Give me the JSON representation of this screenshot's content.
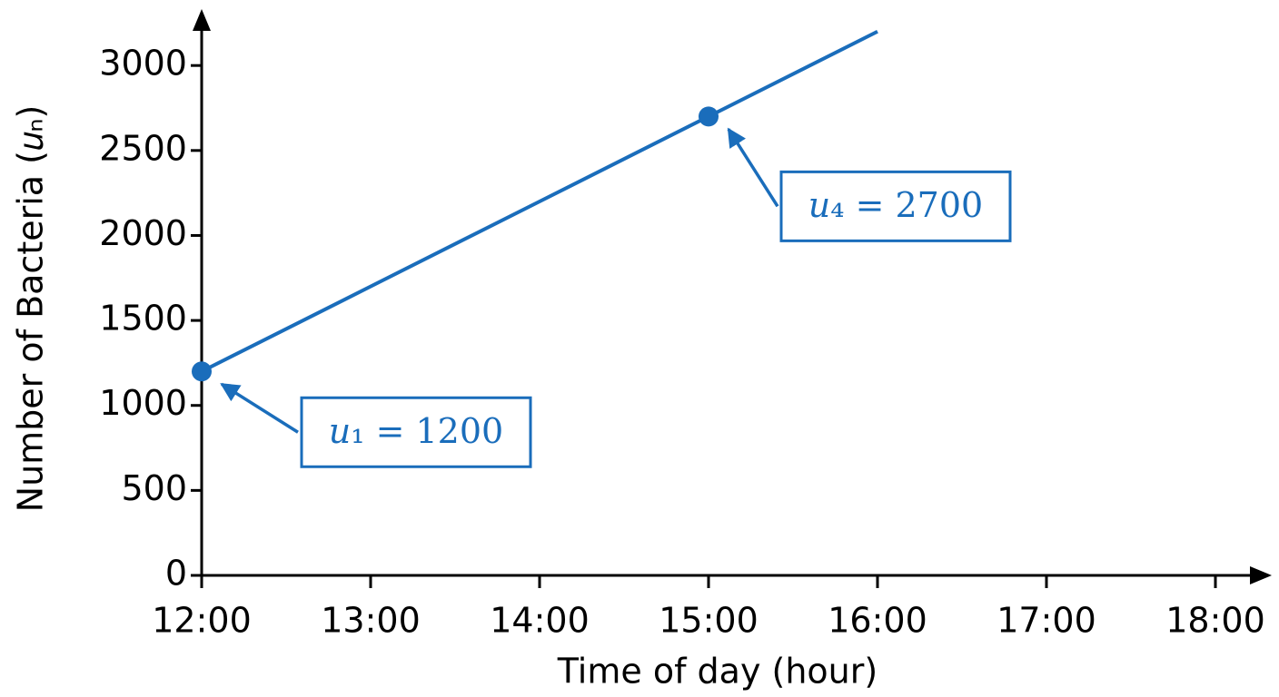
{
  "chart_data": {
    "type": "line",
    "x_label": "Time of day (hour)",
    "y_label": "Number of Bacteria (𝑢ₙ)",
    "categories": [
      "12:00",
      "13:00",
      "14:00",
      "15:00",
      "16:00",
      "17:00",
      "18:00"
    ],
    "series": [
      {
        "color": "#1a6dbb",
        "values": [
          1200,
          1700,
          2200,
          2700,
          3200,
          null,
          null
        ]
      }
    ],
    "ylim": [
      0,
      3300
    ],
    "yticks": [
      0,
      500,
      1000,
      1500,
      2000,
      2500,
      3000
    ],
    "annotations": [
      {
        "x": "12:00",
        "y": 1200,
        "text": "𝑢₁ = 1200"
      },
      {
        "x": "15:00",
        "y": 2700,
        "text": "𝑢₄ = 2700"
      }
    ]
  }
}
